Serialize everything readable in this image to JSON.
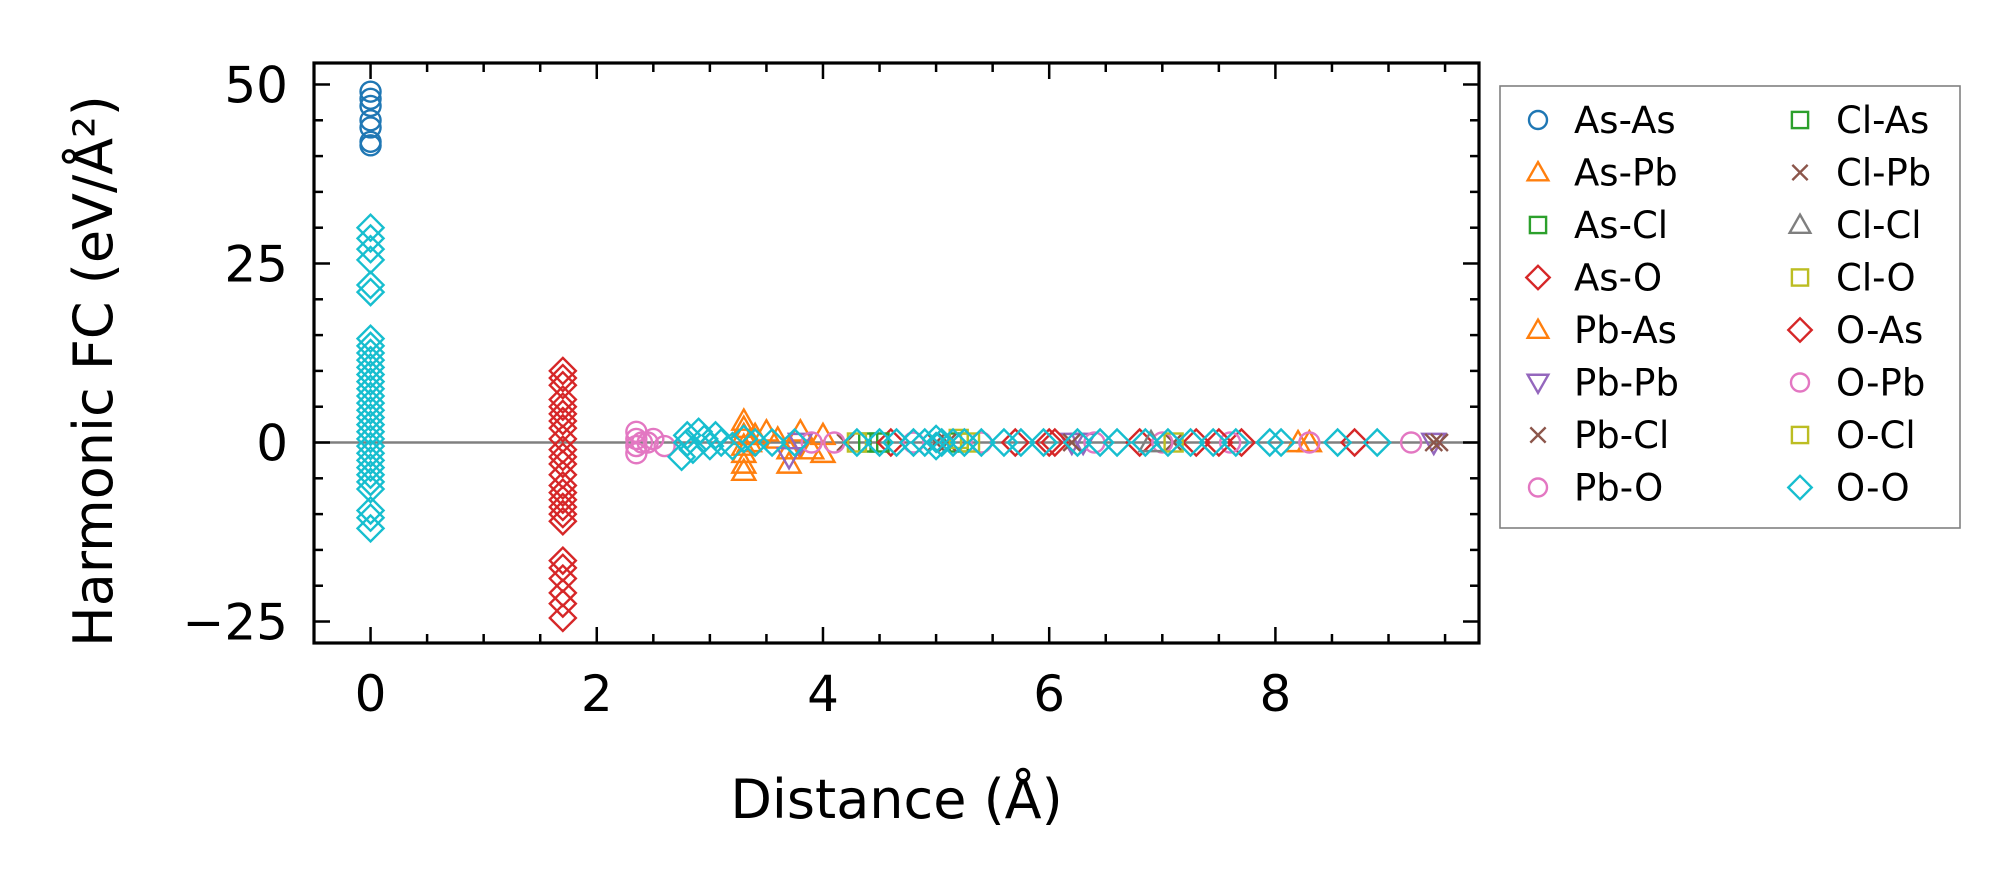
{
  "chart_data": {
    "type": "scatter",
    "xlabel": "Distance (Å)",
    "ylabel": "Harmonic FC (eV/Å²)",
    "xlim": [
      -0.5,
      9.8
    ],
    "ylim": [
      -28,
      53
    ],
    "xticks": [
      0,
      2,
      4,
      6,
      8
    ],
    "yticks": [
      -25,
      0,
      25,
      50
    ],
    "ytick_labels": [
      "−25",
      "0",
      "25",
      "50"
    ],
    "legend_placement": "right, outside plot, 2 columns",
    "zero_line": true,
    "series": [
      {
        "name": "As-As",
        "marker": "circle",
        "color": "#1f77b4",
        "points": [
          [
            0,
            49
          ],
          [
            0,
            48
          ],
          [
            0,
            47
          ],
          [
            0,
            45
          ],
          [
            0,
            44
          ],
          [
            0,
            42
          ],
          [
            0,
            41.5
          ]
        ]
      },
      {
        "name": "As-Pb",
        "marker": "triangle-up",
        "color": "#ff7f0e",
        "points": [
          [
            3.3,
            3
          ],
          [
            3.3,
            2
          ],
          [
            3.3,
            1
          ],
          [
            3.3,
            -0.5
          ],
          [
            3.3,
            -1.5
          ],
          [
            3.3,
            -3
          ],
          [
            3.3,
            -4
          ],
          [
            3.4,
            1
          ],
          [
            3.5,
            1.5
          ],
          [
            3.6,
            0.5
          ],
          [
            3.7,
            -1
          ],
          [
            3.7,
            -3
          ],
          [
            3.8,
            1.5
          ],
          [
            3.9,
            -1
          ],
          [
            4.0,
            1
          ],
          [
            4.0,
            -1.5
          ],
          [
            8.3,
            0
          ]
        ]
      },
      {
        "name": "As-Cl",
        "marker": "square",
        "color": "#2ca02c",
        "points": [
          [
            4.4,
            0
          ],
          [
            5.2,
            0
          ]
        ]
      },
      {
        "name": "As-O",
        "marker": "diamond",
        "color": "#d62728",
        "points": [
          [
            1.7,
            10
          ],
          [
            1.7,
            9
          ],
          [
            1.7,
            8
          ],
          [
            1.7,
            6
          ],
          [
            1.7,
            5
          ],
          [
            1.7,
            4
          ],
          [
            1.7,
            3
          ],
          [
            1.7,
            2
          ],
          [
            1.7,
            0.5
          ],
          [
            1.7,
            -1
          ],
          [
            1.7,
            -2
          ],
          [
            1.7,
            -3
          ],
          [
            1.7,
            -4.5
          ],
          [
            1.7,
            -6
          ],
          [
            1.7,
            -7
          ],
          [
            1.7,
            -8
          ],
          [
            1.7,
            -9
          ],
          [
            1.7,
            -10
          ],
          [
            1.7,
            -11
          ],
          [
            1.7,
            -16.5
          ],
          [
            1.7,
            -17.5
          ],
          [
            1.7,
            -19
          ],
          [
            1.7,
            -21
          ],
          [
            1.7,
            -22.5
          ],
          [
            1.7,
            -24.5
          ],
          [
            4.6,
            0
          ],
          [
            5.7,
            0
          ],
          [
            6.0,
            0
          ],
          [
            6.8,
            0
          ],
          [
            7.3,
            0
          ],
          [
            7.7,
            0
          ],
          [
            8.7,
            0
          ]
        ]
      },
      {
        "name": "Pb-As",
        "marker": "triangle-up",
        "color": "#ff7f0e",
        "points": [
          [
            3.35,
            0
          ],
          [
            8.2,
            0
          ]
        ]
      },
      {
        "name": "Pb-Pb",
        "marker": "triangle-down",
        "color": "#9467bd",
        "points": [
          [
            3.7,
            -2
          ],
          [
            3.8,
            0
          ],
          [
            6.2,
            0
          ],
          [
            6.3,
            0
          ],
          [
            9.4,
            0
          ]
        ]
      },
      {
        "name": "Pb-Cl",
        "marker": "x",
        "color": "#8c564b",
        "points": [
          [
            4.2,
            0
          ],
          [
            5.0,
            0
          ],
          [
            6.2,
            0
          ],
          [
            7.1,
            0
          ],
          [
            9.4,
            0
          ],
          [
            9.45,
            0
          ]
        ]
      },
      {
        "name": "Pb-O",
        "marker": "circle",
        "color": "#e377c2",
        "points": [
          [
            2.35,
            1.5
          ],
          [
            2.35,
            0.5
          ],
          [
            2.35,
            -0.5
          ],
          [
            2.35,
            -1.5
          ],
          [
            2.4,
            0
          ],
          [
            2.5,
            0.5
          ],
          [
            2.6,
            -0.5
          ],
          [
            4.1,
            0
          ],
          [
            4.8,
            0
          ],
          [
            5.4,
            0
          ],
          [
            6.4,
            0
          ],
          [
            7.0,
            0
          ],
          [
            7.6,
            0
          ],
          [
            8.3,
            0
          ],
          [
            9.2,
            0
          ]
        ]
      },
      {
        "name": "Cl-As",
        "marker": "square",
        "color": "#2ca02c",
        "points": [
          [
            4.5,
            0
          ]
        ]
      },
      {
        "name": "Cl-Pb",
        "marker": "x",
        "color": "#8c564b",
        "points": [
          [
            5.1,
            0
          ]
        ]
      },
      {
        "name": "Cl-Cl",
        "marker": "triangle-up",
        "color": "#7f7f7f",
        "points": [
          [
            6.9,
            0
          ]
        ]
      },
      {
        "name": "Cl-O",
        "marker": "square",
        "color": "#bcbd22",
        "points": [
          [
            4.3,
            0
          ],
          [
            5.3,
            0
          ],
          [
            7.1,
            0
          ]
        ]
      },
      {
        "name": "O-As",
        "marker": "diamond",
        "color": "#d62728",
        "points": [
          [
            6.05,
            0
          ],
          [
            7.5,
            0
          ]
        ]
      },
      {
        "name": "O-Pb",
        "marker": "circle",
        "color": "#e377c2",
        "points": [
          [
            2.45,
            0
          ],
          [
            3.9,
            0
          ]
        ]
      },
      {
        "name": "O-Cl",
        "marker": "square",
        "color": "#bcbd22",
        "points": [
          [
            5.2,
            0.5
          ]
        ]
      },
      {
        "name": "O-O",
        "marker": "diamond",
        "color": "#17becf",
        "points": [
          [
            0,
            30
          ],
          [
            0,
            28.5
          ],
          [
            0,
            27
          ],
          [
            0,
            25.5
          ],
          [
            0,
            22
          ],
          [
            0,
            21
          ],
          [
            0,
            14.5
          ],
          [
            0,
            13.5
          ],
          [
            0,
            12.5
          ],
          [
            0,
            11.5
          ],
          [
            0,
            10.5
          ],
          [
            0,
            9.5
          ],
          [
            0,
            8.5
          ],
          [
            0,
            7.5
          ],
          [
            0,
            6.5
          ],
          [
            0,
            5.5
          ],
          [
            0,
            4.5
          ],
          [
            0,
            3.5
          ],
          [
            0,
            2.5
          ],
          [
            0,
            1.5
          ],
          [
            0,
            0.5
          ],
          [
            0,
            -0.5
          ],
          [
            0,
            -1.5
          ],
          [
            0,
            -2.5
          ],
          [
            0,
            -3.5
          ],
          [
            0,
            -4.5
          ],
          [
            0,
            -5.5
          ],
          [
            0,
            -6.5
          ],
          [
            0,
            -9.5
          ],
          [
            0,
            -10.5
          ],
          [
            0,
            -12
          ],
          [
            2.75,
            -2
          ],
          [
            2.8,
            1
          ],
          [
            2.8,
            0
          ],
          [
            2.85,
            -1
          ],
          [
            2.9,
            1.5
          ],
          [
            2.95,
            0.5
          ],
          [
            3.0,
            -0.5
          ],
          [
            3.05,
            1
          ],
          [
            3.1,
            0
          ],
          [
            3.2,
            -0.5
          ],
          [
            3.3,
            0.5
          ],
          [
            3.4,
            0
          ],
          [
            3.55,
            0
          ],
          [
            3.75,
            0
          ],
          [
            4.3,
            0
          ],
          [
            4.5,
            0
          ],
          [
            4.65,
            0
          ],
          [
            4.8,
            0
          ],
          [
            4.9,
            0
          ],
          [
            5.0,
            0.5
          ],
          [
            5.0,
            -0.5
          ],
          [
            5.05,
            0
          ],
          [
            5.15,
            0
          ],
          [
            5.25,
            0
          ],
          [
            5.4,
            0
          ],
          [
            5.6,
            0
          ],
          [
            5.75,
            0
          ],
          [
            5.95,
            0
          ],
          [
            6.25,
            0
          ],
          [
            6.45,
            0
          ],
          [
            6.6,
            0
          ],
          [
            6.85,
            0
          ],
          [
            7.05,
            0
          ],
          [
            7.25,
            0
          ],
          [
            7.45,
            0
          ],
          [
            7.65,
            0
          ],
          [
            7.95,
            0
          ],
          [
            8.05,
            0
          ],
          [
            8.55,
            0
          ],
          [
            8.9,
            0
          ]
        ]
      }
    ]
  }
}
